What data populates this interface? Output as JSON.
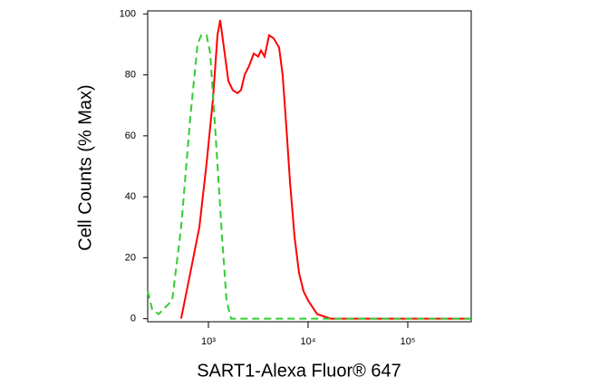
{
  "chart_data": {
    "type": "line",
    "x_label": "SART1-Alexa Fluor® 647",
    "y_label": "Cell Counts (% Max)",
    "x_scale": "log",
    "xlim": [
      246,
      433000
    ],
    "ylim": [
      -1,
      101
    ],
    "xticks": [
      {
        "value": 1000,
        "label": "10³"
      },
      {
        "value": 10000,
        "label": "10⁴"
      },
      {
        "value": 100000,
        "label": "10⁵"
      }
    ],
    "yticks": [
      0,
      20,
      40,
      60,
      80,
      100
    ],
    "series": [
      {
        "color": "#ff0000",
        "dashed": false,
        "x": [
          533,
          658,
          811,
          959,
          1110,
          1233,
          1313,
          1458,
          1585,
          1758,
          1954,
          2124,
          2310,
          2566,
          2849,
          3162,
          3367,
          3661,
          4064,
          4518,
          5117,
          5559,
          6052,
          6577,
          7311,
          8111,
          9010,
          10000,
          12330,
          16870,
          433000
        ],
        "values": [
          0,
          15,
          30,
          51,
          72,
          93,
          98,
          87,
          78,
          75,
          74,
          75,
          80,
          83,
          87,
          86,
          88,
          86,
          93,
          92,
          89,
          80,
          63,
          45,
          27,
          15,
          9,
          6,
          1.5,
          0,
          0
        ]
      },
      {
        "color": "#33cc33",
        "dashed": true,
        "x": [
          246,
          273,
          316,
          433,
          533,
          658,
          778,
          846,
          959,
          1043,
          1182,
          1369,
          1520,
          1688,
          433000
        ],
        "values": [
          9,
          3,
          1.5,
          6,
          30,
          66,
          90,
          93,
          93,
          87,
          60,
          27,
          6,
          0,
          0
        ]
      }
    ]
  }
}
